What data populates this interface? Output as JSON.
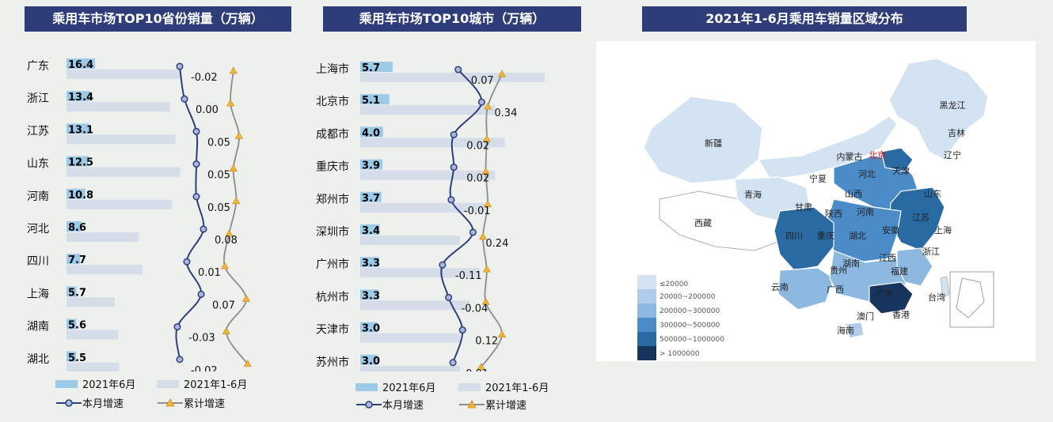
{
  "titles": {
    "left": "乘用车市场TOP10省份销量（万辆）",
    "middle": "乘用车市场TOP10城市（万辆）",
    "right": "2021年1-6月乘用车销量区域分布"
  },
  "legend": {
    "june": "2021年6月",
    "ytd": "2021年1-6月",
    "monthly_growth": "本月增速",
    "cumulative_growth": "累计增速"
  },
  "colors": {
    "title_bg": "#2f3e7a",
    "june_bar": "#9ccbe9",
    "ytd_bar": "#d5dde8",
    "monthly_line": "#2d3f7e",
    "cumulative_line": "#8c8c8c",
    "cumulative_marker": "#f3b43c"
  },
  "chart_data": [
    {
      "type": "bar",
      "categories": [
        "广东",
        "浙江",
        "江苏",
        "山东",
        "河南",
        "河北",
        "四川",
        "上海",
        "湖南",
        "湖北"
      ],
      "series": [
        {
          "name": "2021年6月",
          "values": [
            16.4,
            13.4,
            13.1,
            12.5,
            10.8,
            8.6,
            7.7,
            5.7,
            5.6,
            5.5
          ]
        },
        {
          "name": "2021年1-6月",
          "values": [
            100,
            90,
            95,
            99,
            92,
            63,
            66,
            42,
            45,
            46
          ]
        },
        {
          "name": "本月增速",
          "values": [
            -0.02,
            0.0,
            0.05,
            0.05,
            0.05,
            0.08,
            0.01,
            0.07,
            -0.03,
            -0.02
          ]
        },
        {
          "name": "累计增速",
          "values": [
            0.06,
            0.04,
            0.1,
            0.06,
            0.08,
            0.03,
            0.0,
            0.15,
            0.01,
            0.16
          ]
        }
      ],
      "growth_labels": [
        "-0.02",
        "0.00",
        "0.05",
        "0.05",
        "0.05",
        "0.08",
        "0.01",
        "0.07",
        "-0.03",
        "-0.02"
      ]
    },
    {
      "type": "bar",
      "categories": [
        "上海市",
        "北京市",
        "成都市",
        "重庆市",
        "郑州市",
        "深圳市",
        "广州市",
        "杭州市",
        "天津市",
        "苏州市"
      ],
      "series": [
        {
          "name": "2021年6月",
          "values": [
            5.7,
            5.1,
            4.0,
            3.9,
            3.7,
            3.4,
            3.3,
            3.3,
            3.0,
            3.0
          ]
        },
        {
          "name": "2021年1-6月",
          "values": [
            37,
            27,
            29,
            27,
            25,
            20,
            24,
            22,
            20,
            20
          ]
        },
        {
          "name": "本月增速",
          "values": [
            0.07,
            0.34,
            0.02,
            0.02,
            -0.01,
            0.24,
            -0.11,
            -0.04,
            0.12,
            0.01
          ]
        },
        {
          "name": "累计增速",
          "values": [
            0.3,
            0.15,
            0.14,
            0.13,
            0.15,
            0.1,
            0.14,
            0.13,
            0.3,
            0.08
          ]
        }
      ],
      "growth_labels": [
        "0.07",
        "0.34",
        "0.02",
        "0.02",
        "-0.01",
        "0.24",
        "-0.11",
        "-0.04",
        "0.12",
        "0.01"
      ]
    },
    {
      "type": "heatmap",
      "legend_bins": [
        "≤20000",
        "20000~200000",
        "200000~300000",
        "300000~500000",
        "500000~1000000",
        "> 1000000"
      ],
      "bin_colors": [
        "#d4e3f2",
        "#b0cce8",
        "#8db8e0",
        "#4a8bc8",
        "#2a6aa3",
        "#16345c"
      ],
      "region_labels": [
        "黑龙江",
        "吉林",
        "辽宁",
        "新疆",
        "内蒙古",
        "北京",
        "天津",
        "河北",
        "山西",
        "山东",
        "宁夏",
        "青海",
        "甘肃",
        "陕西",
        "河南",
        "江苏",
        "上海",
        "西藏",
        "四川",
        "重庆",
        "湖北",
        "安徽",
        "浙江",
        "湖南",
        "江西",
        "贵州",
        "福建",
        "云南",
        "广西",
        "广东",
        "台湾",
        "澳门",
        "香港",
        "海南"
      ]
    }
  ]
}
